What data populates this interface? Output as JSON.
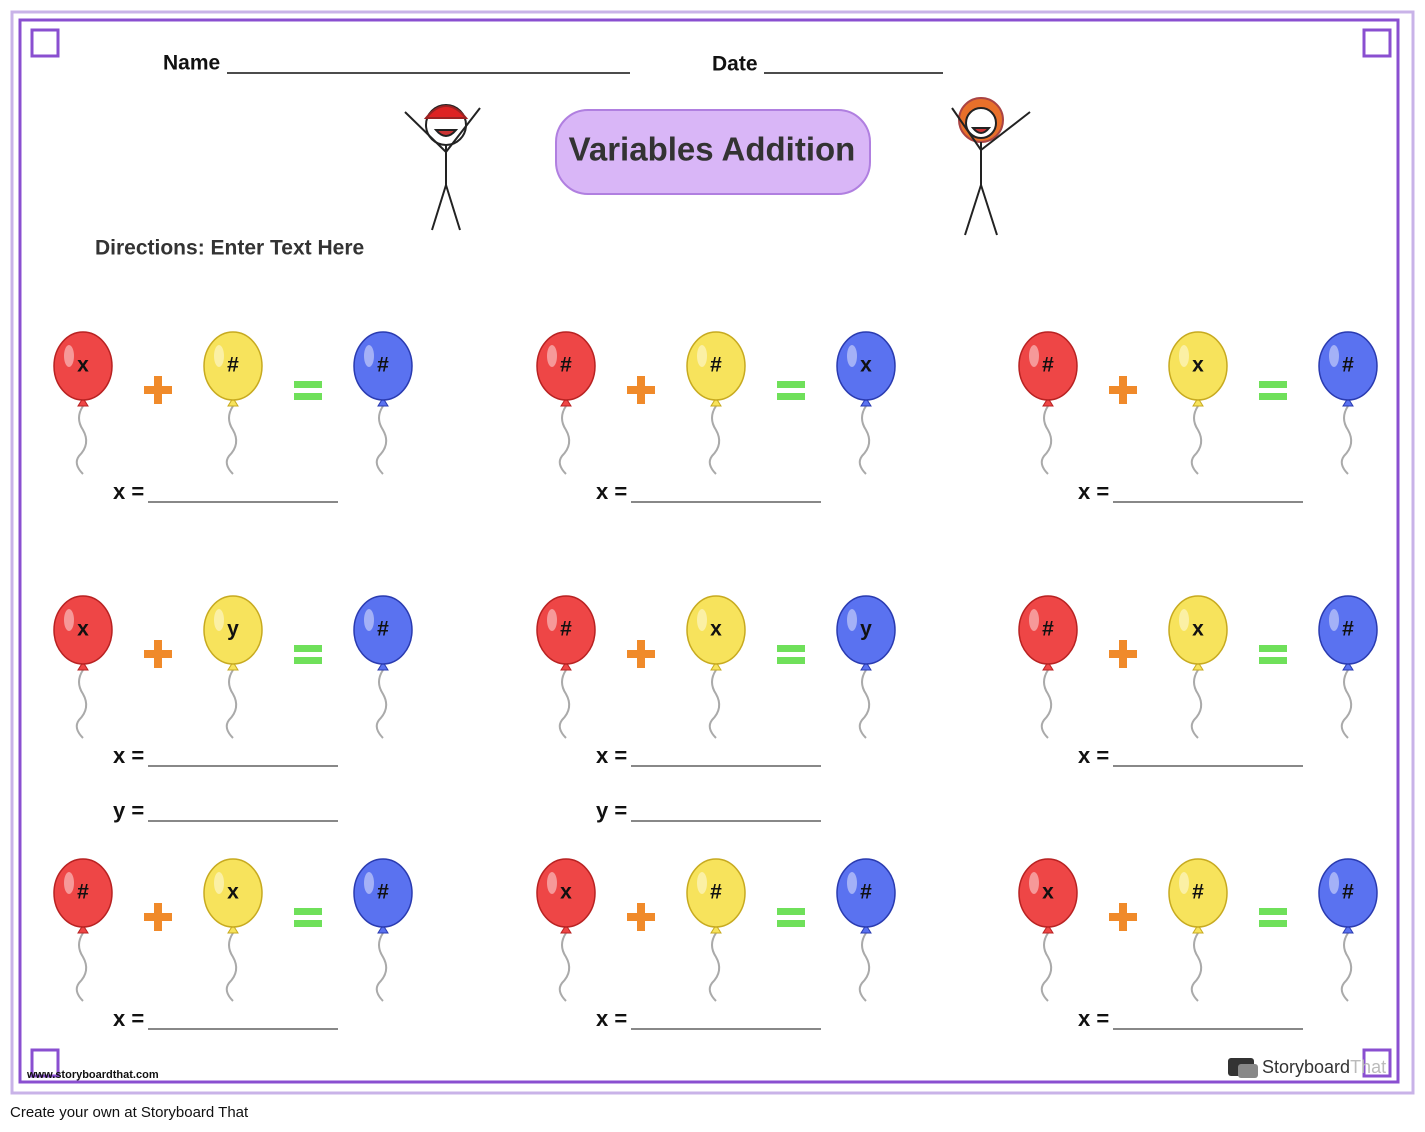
{
  "header": {
    "name_label": "Name",
    "date_label": "Date",
    "title": "Variables Addition",
    "directions": "Directions: Enter Text Here"
  },
  "problems": [
    {
      "balloons": [
        "x",
        "#",
        "#"
      ],
      "answers": [
        "x ="
      ]
    },
    {
      "balloons": [
        "#",
        "#",
        "x"
      ],
      "answers": [
        "x ="
      ]
    },
    {
      "balloons": [
        "#",
        "x",
        "#"
      ],
      "answers": [
        "x ="
      ]
    },
    {
      "balloons": [
        "x",
        "y",
        "#"
      ],
      "answers": [
        "x =",
        "y ="
      ]
    },
    {
      "balloons": [
        "#",
        "x",
        "y"
      ],
      "answers": [
        "x =",
        "y ="
      ]
    },
    {
      "balloons": [
        "#",
        "x",
        "#"
      ],
      "answers": [
        "x ="
      ]
    },
    {
      "balloons": [
        "#",
        "x",
        "#"
      ],
      "answers": [
        "x ="
      ]
    },
    {
      "balloons": [
        "x",
        "#",
        "#"
      ],
      "answers": [
        "x ="
      ]
    },
    {
      "balloons": [
        "x",
        "#",
        "#"
      ],
      "answers": [
        "x ="
      ]
    }
  ],
  "footer": {
    "website": "www.storyboardthat.com",
    "brand": [
      "Storyboard",
      "That"
    ],
    "credit": "Create your own at Storyboard That"
  }
}
